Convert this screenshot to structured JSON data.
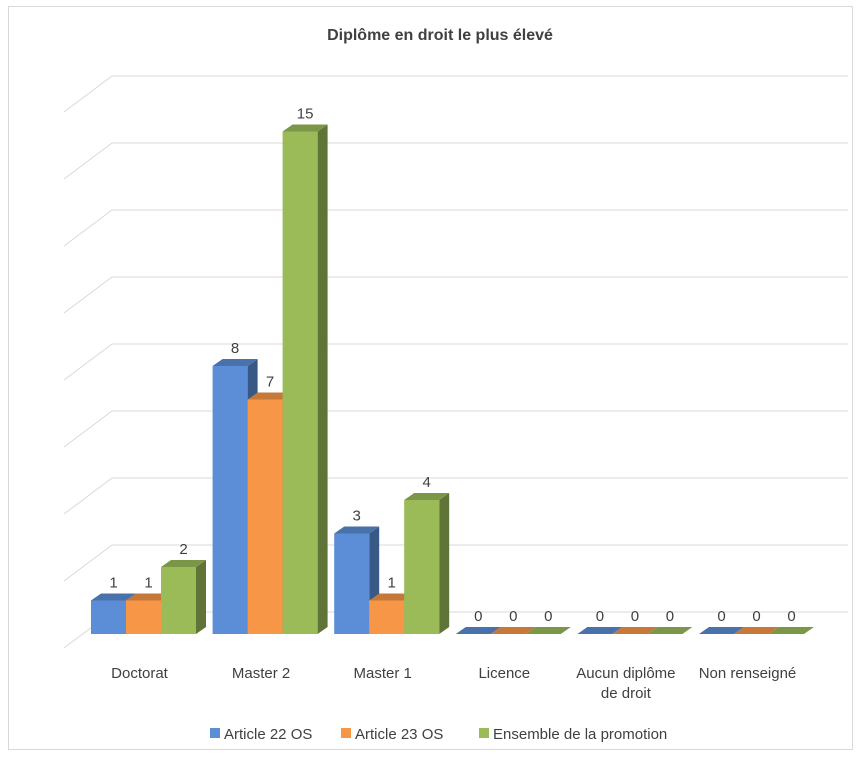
{
  "chart_data": {
    "type": "bar",
    "title": "Diplôme en droit le plus élevé",
    "categories": [
      [
        "Doctorat"
      ],
      [
        "Master 2"
      ],
      [
        "Master 1"
      ],
      [
        "Licence"
      ],
      [
        "Aucun diplôme",
        "de droit"
      ],
      [
        "Non renseigné"
      ]
    ],
    "series": [
      {
        "name": "Article 22 OS",
        "values": [
          1,
          8,
          3,
          0,
          0,
          0
        ],
        "color": "#5b8ed6"
      },
      {
        "name": "Article 23 OS",
        "values": [
          1,
          7,
          1,
          0,
          0,
          0
        ],
        "color": "#f79646"
      },
      {
        "name": "Ensemble de la promotion",
        "values": [
          2,
          15,
          4,
          0,
          0,
          0
        ],
        "color": "#9bbb59"
      }
    ],
    "ylim": [
      0,
      16
    ],
    "grid": true,
    "legend": "bottom",
    "three_d": true
  }
}
